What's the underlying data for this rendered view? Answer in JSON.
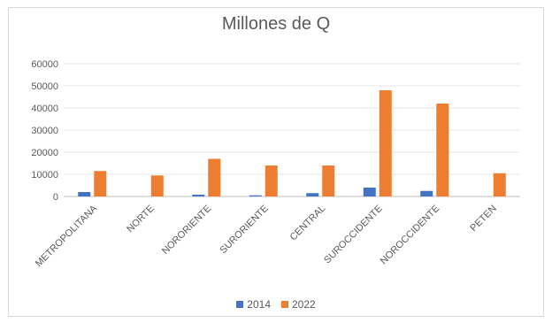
{
  "chart_data": {
    "type": "bar",
    "title": "Millones de Q",
    "categories": [
      "METROPOLITANA",
      "NORTE",
      "NORORIENTE",
      "SURORIENTE",
      "CENTRAL",
      "SUROCCIDENTE",
      "NOROCCIDENTE",
      "PETEN"
    ],
    "series": [
      {
        "name": "2014",
        "color": "#4472c4",
        "values": [
          2000,
          0,
          800,
          500,
          1500,
          4000,
          2500,
          0
        ]
      },
      {
        "name": "2022",
        "color": "#ed7d31",
        "values": [
          11500,
          9500,
          17000,
          14000,
          14000,
          48000,
          42000,
          10500
        ]
      }
    ],
    "y_ticks": [
      "0",
      "10000",
      "20000",
      "30000",
      "40000",
      "50000",
      "60000"
    ],
    "ylim": [
      0,
      60000
    ],
    "grid": true,
    "legend_position": "bottom"
  }
}
